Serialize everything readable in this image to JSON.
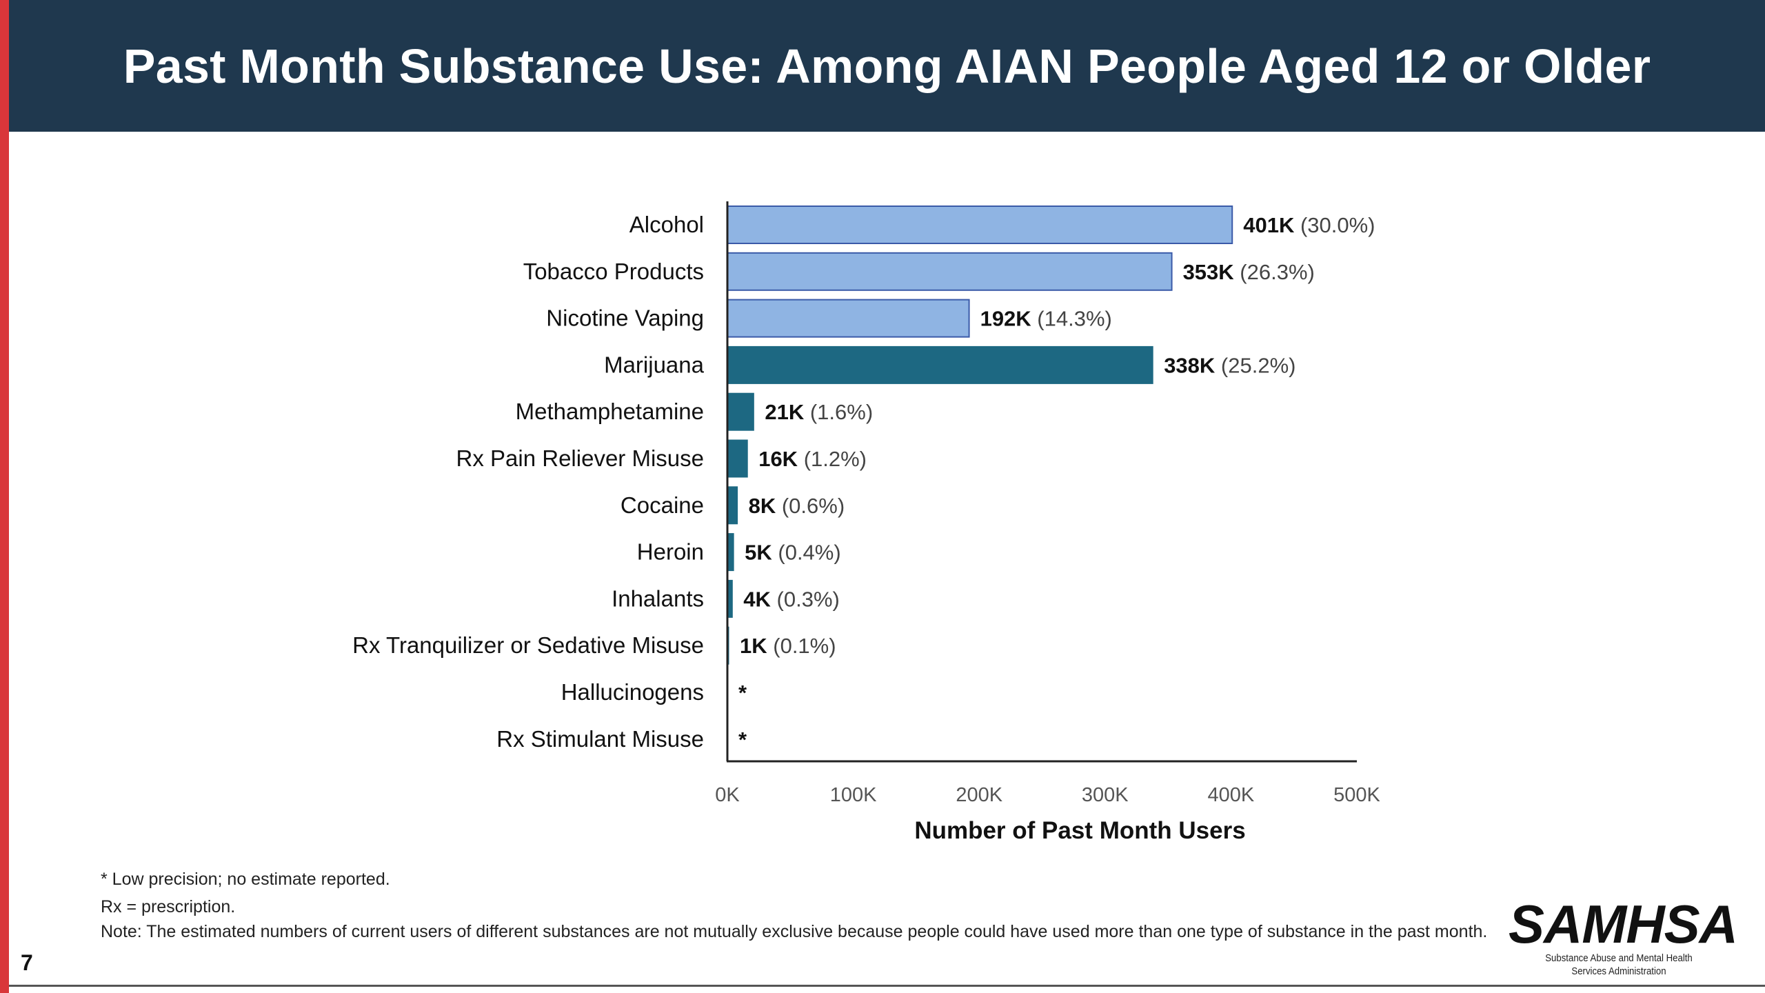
{
  "header": {
    "title": "Past Month Substance Use: Among AIAN People Aged 12 or Older"
  },
  "colors": {
    "header_bg": "#1f384e",
    "accent_red": "#d9363a",
    "light_bar": "#8fb4e3",
    "light_bar_border": "#3a5aa8",
    "dark_bar": "#1d6882"
  },
  "chart_data": {
    "type": "bar",
    "orientation": "horizontal",
    "categories": [
      "Alcohol",
      "Tobacco Products",
      "Nicotine Vaping",
      "Marijuana",
      "Methamphetamine",
      "Rx Pain Reliever Misuse",
      "Cocaine",
      "Heroin",
      "Inhalants",
      "Rx Tranquilizer or Sedative Misuse",
      "Hallucinogens",
      "Rx Stimulant Misuse"
    ],
    "values": [
      401000,
      353000,
      192000,
      338000,
      21000,
      16000,
      8000,
      5000,
      4000,
      1000,
      null,
      null
    ],
    "value_labels": [
      "401K",
      "353K",
      "192K",
      "338K",
      "21K",
      "16K",
      "8K",
      "5K",
      "4K",
      "1K",
      "*",
      "*"
    ],
    "percent_labels": [
      "(30.0%)",
      "(26.3%)",
      "(14.3%)",
      "(25.2%)",
      "(1.6%)",
      "(1.2%)",
      "(0.6%)",
      "(0.4%)",
      "(0.3%)",
      "(0.1%)",
      "",
      ""
    ],
    "bar_style": [
      "light",
      "light",
      "light",
      "dark",
      "dark",
      "dark",
      "dark",
      "dark",
      "dark",
      "dark",
      "dark",
      "dark"
    ],
    "xlabel": "Number of Past Month Users",
    "ylabel": "",
    "xlim": [
      0,
      500000
    ],
    "ticks": [
      0,
      100000,
      200000,
      300000,
      400000,
      500000
    ],
    "tick_labels": [
      "0K",
      "100K",
      "200K",
      "300K",
      "400K",
      "500K"
    ],
    "grid": false,
    "legend": "none"
  },
  "footnotes": {
    "low_precision": "* Low precision; no estimate reported.",
    "rx": "Rx = prescription.",
    "note": "Note: The estimated numbers of current users of different substances are not mutually exclusive because people could have used more than one type of substance in the past month."
  },
  "page_number": "7",
  "logo": {
    "name": "SAMHSA",
    "subtitle_line1": "Substance Abuse and Mental Health",
    "subtitle_line2": "Services Administration"
  }
}
